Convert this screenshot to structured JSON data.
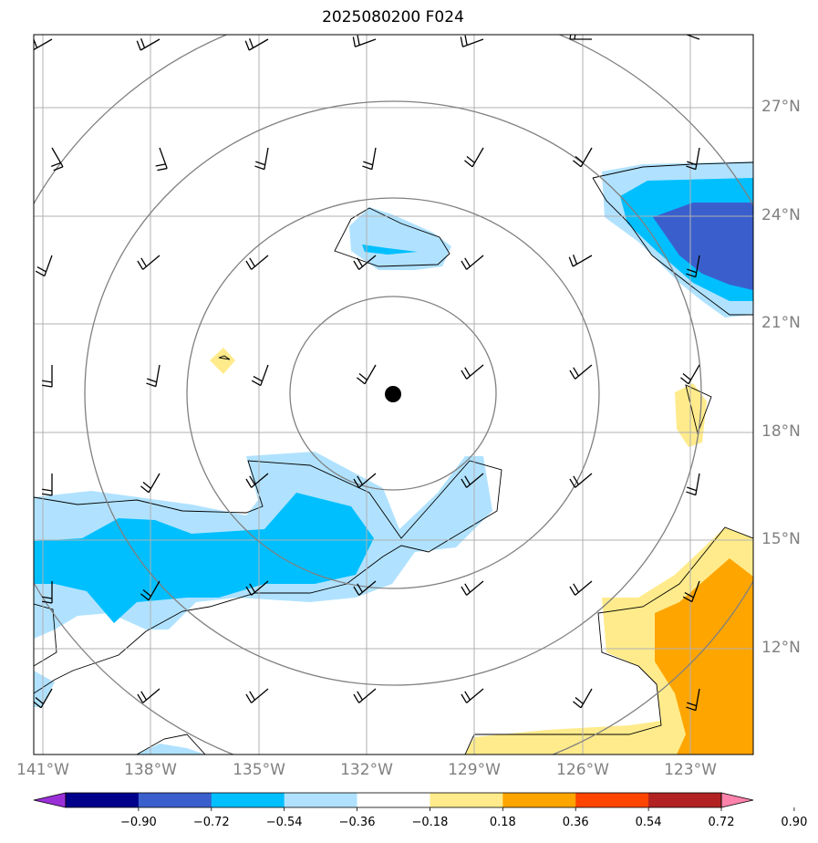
{
  "title": "2025080200 F024",
  "lat_labels": [
    "27°N",
    "24°N",
    "21°N",
    "18°N",
    "15°N",
    "12°N"
  ],
  "lon_labels": [
    "141°W",
    "138°W",
    "135°W",
    "132°W",
    "129°W",
    "126°W",
    "123°W"
  ],
  "colorbar": {
    "ticks": [
      "−0.90",
      "−0.72",
      "−0.54",
      "−0.36",
      "−0.18",
      "0.18",
      "0.36",
      "0.54",
      "0.72",
      "0.90"
    ],
    "colors": [
      "#9b30d9",
      "#00008b",
      "#3a5fcd",
      "#00bfff",
      "#b0e2ff",
      "#ffffff",
      "#ffeb8b",
      "#ffa500",
      "#ff4500",
      "#b22222",
      "#ff82ab"
    ]
  },
  "map": {
    "extent_lon": [
      -141.0,
      -121.0
    ],
    "extent_lat": [
      9.0,
      29.0
    ],
    "storm_center": {
      "lon": -131.3,
      "lat": 19.0
    },
    "range_rings_deg": [
      3,
      6,
      9,
      12
    ],
    "colors": {
      "fill_light_blue": "#b0e2ff",
      "fill_blue": "#00bfff",
      "fill_dark_blue": "#3a5fcd",
      "fill_yellow": "#ffeb8b",
      "fill_orange": "#ffa500",
      "ring": "#808080",
      "grid": "#b0b0b0"
    }
  }
}
